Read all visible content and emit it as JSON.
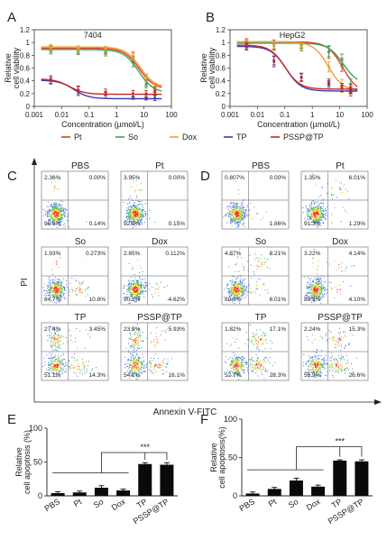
{
  "panel_letters": [
    "A",
    "B",
    "C",
    "D",
    "E",
    "F"
  ],
  "chart_data": [
    {
      "type": "line",
      "panel": "A",
      "title": "7404",
      "xlabel": "Concentration (µmol/L)",
      "ylabel": [
        "Relative",
        "cell viability"
      ],
      "x_scale": "log",
      "xlim": [
        0.001,
        100
      ],
      "ylim": [
        0,
        1.2
      ],
      "x_ticks": [
        "0.001",
        "0.01",
        "0.1",
        "1",
        "10",
        "100"
      ],
      "y_ticks": [
        "0",
        "0.2",
        "0.4",
        "0.6",
        "0.8",
        "1",
        "1.2"
      ],
      "x": [
        0.004,
        0.04,
        0.4,
        4,
        12,
        25
      ],
      "series": [
        {
          "name": "Pt",
          "color": "#e8392e",
          "values": [
            0.9,
            0.88,
            0.87,
            0.76,
            0.4,
            0.28
          ],
          "errors": [
            0.05,
            0.05,
            0.05,
            0.08,
            0.08,
            0.06
          ]
        },
        {
          "name": "So",
          "color": "#3aa655",
          "values": [
            0.88,
            0.86,
            0.84,
            0.7,
            0.35,
            0.22
          ],
          "errors": [
            0.06,
            0.05,
            0.05,
            0.08,
            0.06,
            0.05
          ]
        },
        {
          "name": "Dox",
          "color": "#f0a030",
          "values": [
            0.92,
            0.9,
            0.9,
            0.8,
            0.45,
            0.3
          ],
          "errors": [
            0.05,
            0.05,
            0.04,
            0.06,
            0.06,
            0.05
          ]
        },
        {
          "name": "TP",
          "color": "#3b3fb0",
          "values": [
            0.4,
            0.24,
            0.18,
            0.15,
            0.14,
            0.13
          ],
          "errors": [
            0.05,
            0.07,
            0.05,
            0.04,
            0.04,
            0.04
          ]
        },
        {
          "name": "PSSP@TP",
          "color": "#c62828",
          "values": [
            0.42,
            0.26,
            0.22,
            0.2,
            0.2,
            0.24
          ],
          "errors": [
            0.06,
            0.06,
            0.05,
            0.05,
            0.05,
            0.06
          ]
        }
      ]
    },
    {
      "type": "line",
      "panel": "B",
      "title": "HepG2",
      "xlabel": "Concentration (µmol/L)",
      "ylabel": [
        "Relative",
        "cell viability"
      ],
      "x_scale": "log",
      "xlim": [
        0.001,
        100
      ],
      "ylim": [
        0,
        1.2
      ],
      "x_ticks": [
        "0.001",
        "0.01",
        "0.1",
        "1",
        "10",
        "100"
      ],
      "y_ticks": [
        "0",
        "0.2",
        "0.4",
        "0.6",
        "0.8",
        "1",
        "1.2"
      ],
      "x": [
        0.004,
        0.04,
        0.4,
        4,
        12,
        25
      ],
      "series": [
        {
          "name": "Pt",
          "color": "#e8392e",
          "values": [
            1.0,
            0.96,
            0.96,
            0.85,
            0.65,
            0.22
          ],
          "errors": [
            0.06,
            0.08,
            0.05,
            0.1,
            0.1,
            0.06
          ]
        },
        {
          "name": "So",
          "color": "#3aa655",
          "values": [
            0.98,
            0.95,
            0.92,
            0.86,
            0.72,
            0.35
          ],
          "errors": [
            0.05,
            0.06,
            0.05,
            0.08,
            0.1,
            0.08
          ]
        },
        {
          "name": "Dox",
          "color": "#f0a030",
          "values": [
            1.0,
            0.96,
            0.94,
            0.62,
            0.32,
            0.25
          ],
          "errors": [
            0.05,
            0.05,
            0.05,
            0.08,
            0.1,
            0.06
          ]
        },
        {
          "name": "TP",
          "color": "#3b3fb0",
          "values": [
            0.93,
            0.7,
            0.45,
            0.35,
            0.28,
            0.25
          ],
          "errors": [
            0.05,
            0.08,
            0.06,
            0.05,
            0.05,
            0.05
          ]
        },
        {
          "name": "PSSP@TP",
          "color": "#c62828",
          "values": [
            0.95,
            0.72,
            0.46,
            0.38,
            0.3,
            0.28
          ],
          "errors": [
            0.05,
            0.07,
            0.06,
            0.05,
            0.06,
            0.06
          ]
        }
      ]
    },
    {
      "type": "bar",
      "panel": "E",
      "ylabel": [
        "Relative",
        "cell apoptosis (%)"
      ],
      "ylim": [
        0,
        100
      ],
      "y_ticks": [
        "0",
        "50",
        "100"
      ],
      "categories": [
        "PBS",
        "Pt",
        "So",
        "Dox",
        "TP",
        "PSSP@TP"
      ],
      "values": [
        4,
        5,
        12,
        8,
        47,
        46
      ],
      "errors": [
        2,
        2,
        3,
        2,
        2,
        3
      ],
      "significance": "***"
    },
    {
      "type": "bar",
      "panel": "F",
      "ylabel": [
        "Relative",
        "cell apoptosis(%)"
      ],
      "ylim": [
        0,
        100
      ],
      "y_ticks": [
        "0",
        "50",
        "100"
      ],
      "categories": [
        "PBS",
        "Pt",
        "So",
        "Dox",
        "TP",
        "PSSP@TP"
      ],
      "values": [
        3,
        9,
        20,
        12,
        46,
        45
      ],
      "errors": [
        2,
        2,
        3,
        2,
        1,
        2
      ],
      "significance": "***"
    }
  ],
  "legend_items": [
    {
      "name": "Pt",
      "color": "#e8392e"
    },
    {
      "name": "So",
      "color": "#3aa655"
    },
    {
      "name": "Dox",
      "color": "#f0a030"
    },
    {
      "name": "TP",
      "color": "#3b3fb0"
    },
    {
      "name": "PSSP@TP",
      "color": "#c62828"
    }
  ],
  "flow": {
    "y_axis_label": "PI",
    "x_axis_label": "Annexin V-FITC",
    "panels": [
      {
        "panel": "C",
        "cells": [
          {
            "label": "PBS",
            "ul": "2.36%",
            "ur": "0.00%",
            "ll": "95.6%",
            "lr": "0.14%"
          },
          {
            "label": "Pt",
            "ul": "3.95%",
            "ur": "0.00%",
            "ll": "92.9%",
            "lr": "0.15%"
          },
          {
            "label": "So",
            "ul": "1.93%",
            "ur": "0.273%",
            "ll": "84.7%",
            "lr": "10.8%"
          },
          {
            "label": "Dox",
            "ul": "2.85%",
            "ur": "0.112%",
            "ll": "90.1%",
            "lr": "4.62%"
          },
          {
            "label": "TP",
            "ul": "27.4%",
            "ur": "3.45%",
            "ll": "51.1%",
            "lr": "14.3%"
          },
          {
            "label": "PSSP@TP",
            "ul": "23.9%",
            "ur": "5.93%",
            "ll": "54.1%",
            "lr": "16.1%"
          }
        ]
      },
      {
        "panel": "D",
        "cells": [
          {
            "label": "PBS",
            "ul": "0.807%",
            "ur": "0.00%",
            "ll": "",
            "lr": "1.86%"
          },
          {
            "label": "Pt",
            "ul": "1.35%",
            "ur": "6.01%",
            "ll": "91.3%",
            "lr": "1.29%"
          },
          {
            "label": "So",
            "ul": "4.87%",
            "ur": "8.21%",
            "ll": "80.9%",
            "lr": "6.01%"
          },
          {
            "label": "Dox",
            "ul": "3.22%",
            "ur": "4.14%",
            "ll": "88.5%",
            "lr": "4.10%"
          },
          {
            "label": "TP",
            "ul": "1.82%",
            "ur": "17.1%",
            "ll": "52.7%",
            "lr": "28.3%"
          },
          {
            "label": "PSSP@TP",
            "ul": "2.24%",
            "ur": "15.3%",
            "ll": "55.9%",
            "lr": "26.6%"
          }
        ]
      }
    ]
  }
}
